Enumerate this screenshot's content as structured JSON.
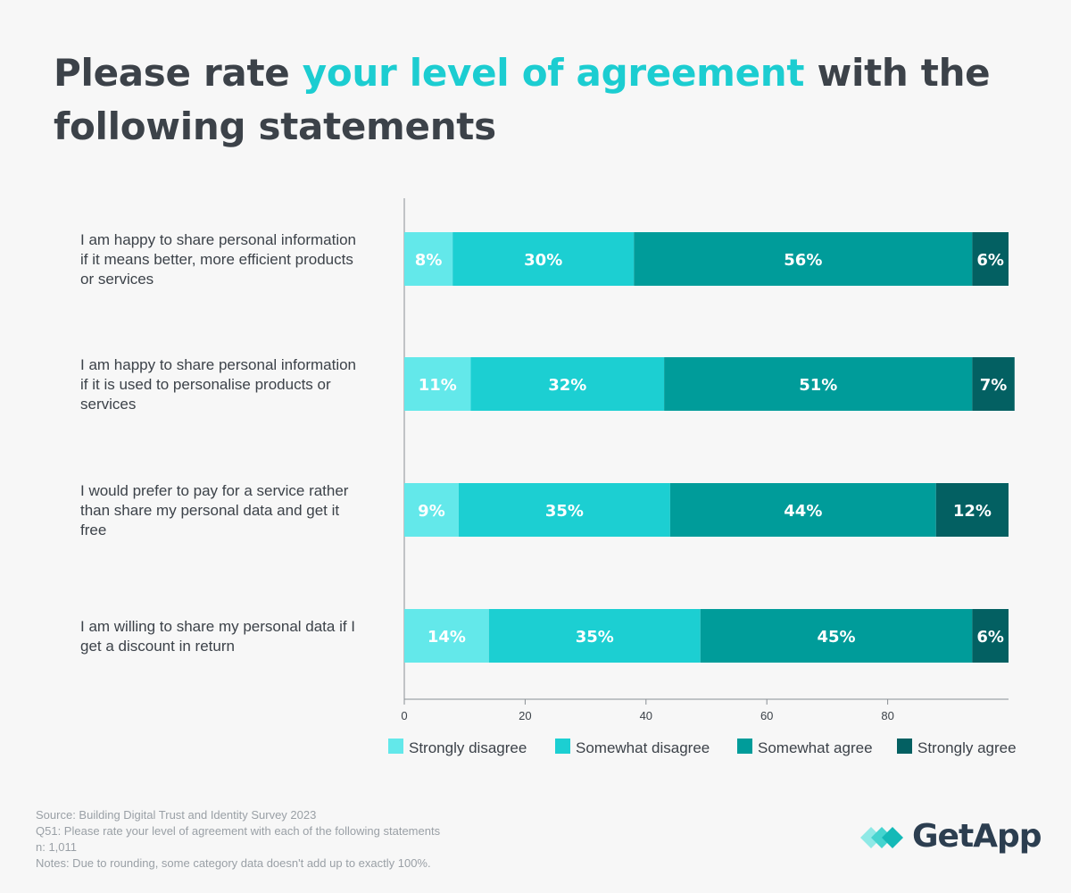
{
  "title": {
    "part1": "Please rate ",
    "accent": "your level of agreement",
    "part2": " with the following statements"
  },
  "chart_data": {
    "type": "bar",
    "orientation": "horizontal",
    "stacked": true,
    "categories": [
      [
        "I am happy to share personal information",
        "if it means better, more efficient products",
        "or services"
      ],
      [
        "I am happy to share personal information",
        "if it is used to personalise products or",
        "services"
      ],
      [
        "I would prefer to pay for a service rather",
        "than share my personal data and get it",
        "free"
      ],
      [
        "I am willing to share my personal data if I",
        "get a discount in return"
      ]
    ],
    "series": [
      {
        "name": "Strongly disagree",
        "color": "#63e8ea",
        "values": [
          8,
          11,
          9,
          14
        ]
      },
      {
        "name": "Somewhat disagree",
        "color": "#1ccfd2",
        "values": [
          30,
          32,
          35,
          35
        ]
      },
      {
        "name": "Somewhat agree",
        "color": "#009c9a",
        "values": [
          56,
          51,
          44,
          45
        ]
      },
      {
        "name": "Strongly agree",
        "color": "#036062",
        "values": [
          6,
          7,
          12,
          6
        ]
      }
    ],
    "value_suffix": "%",
    "xlim": [
      0,
      100
    ],
    "xticks": [
      0,
      20,
      40,
      60,
      80
    ],
    "grid": false,
    "legend_position": "bottom"
  },
  "footer": {
    "source": "Source: Building Digital Trust and Identity Survey 2023",
    "question": "Q51: Please rate your level of agreement with each of the following statements",
    "sample": "n: 1,011",
    "notes": "Notes: Due to rounding, some category data doesn't add up to exactly 100%."
  },
  "logo": {
    "text": "GetApp"
  },
  "colors": {
    "accent": "#1ccdd1",
    "text": "#3c4249",
    "muted": "#9aa0a6"
  }
}
